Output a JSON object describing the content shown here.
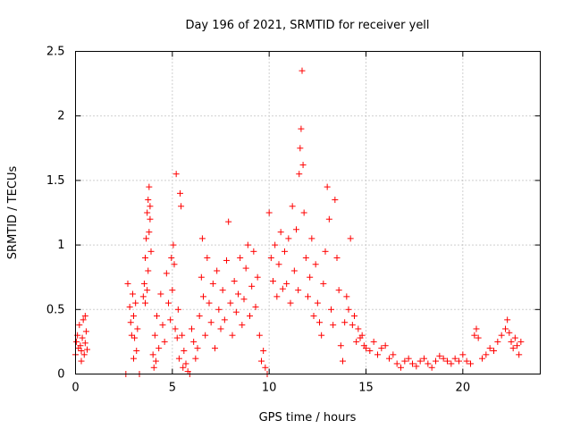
{
  "chart_data": {
    "type": "scatter",
    "title": "Day 196 of 2021, SRMTID for receiver yell",
    "xlabel": "GPS time / hours",
    "ylabel": "SRMTID / TECUs",
    "xlim": [
      0,
      24
    ],
    "ylim": [
      0,
      2.5
    ],
    "x_ticks": [
      0,
      5,
      10,
      15,
      20
    ],
    "x_tick_labels": [
      "0",
      "5",
      "10",
      "15",
      "20"
    ],
    "y_ticks": [
      0,
      0.5,
      1,
      1.5,
      2,
      2.5
    ],
    "y_tick_labels": [
      "0",
      "0.5",
      "1",
      "1.5",
      "2",
      "2.5"
    ],
    "grid": true,
    "marker": "+",
    "series": [
      {
        "name": "SRMTID",
        "color": "#ff0000",
        "points": [
          [
            0.0,
            0.15
          ],
          [
            0.05,
            0.25
          ],
          [
            0.1,
            0.3
          ],
          [
            0.15,
            0.2
          ],
          [
            0.2,
            0.38
          ],
          [
            0.25,
            0.22
          ],
          [
            0.3,
            0.18
          ],
          [
            0.35,
            0.28
          ],
          [
            0.4,
            0.42
          ],
          [
            0.45,
            0.15
          ],
          [
            0.5,
            0.24
          ],
          [
            0.55,
            0.33
          ],
          [
            0.6,
            0.19
          ],
          [
            0.5,
            0.45
          ],
          [
            0.3,
            0.1
          ],
          [
            2.6,
            0.0
          ],
          [
            2.7,
            0.7
          ],
          [
            2.8,
            0.52
          ],
          [
            2.85,
            0.4
          ],
          [
            2.9,
            0.3
          ],
          [
            2.95,
            0.62
          ],
          [
            3.0,
            0.45
          ],
          [
            3.05,
            0.28
          ],
          [
            3.1,
            0.55
          ],
          [
            3.15,
            0.18
          ],
          [
            3.2,
            0.35
          ],
          [
            3.0,
            0.12
          ],
          [
            3.3,
            0.0
          ],
          [
            3.5,
            0.6
          ],
          [
            3.55,
            0.7
          ],
          [
            3.6,
            0.9
          ],
          [
            3.65,
            1.05
          ],
          [
            3.7,
            1.25
          ],
          [
            3.75,
            1.35
          ],
          [
            3.8,
            1.45
          ],
          [
            3.85,
            1.2
          ],
          [
            3.9,
            0.95
          ],
          [
            3.6,
            0.55
          ],
          [
            3.7,
            0.65
          ],
          [
            3.75,
            0.8
          ],
          [
            3.8,
            1.1
          ],
          [
            3.85,
            1.3
          ],
          [
            4.0,
            0.15
          ],
          [
            4.05,
            0.05
          ],
          [
            4.1,
            0.3
          ],
          [
            4.15,
            0.1
          ],
          [
            4.2,
            0.45
          ],
          [
            4.3,
            0.2
          ],
          [
            4.4,
            0.62
          ],
          [
            4.5,
            0.38
          ],
          [
            4.6,
            0.25
          ],
          [
            4.7,
            0.78
          ],
          [
            4.8,
            0.55
          ],
          [
            4.9,
            0.42
          ],
          [
            4.95,
            0.9
          ],
          [
            5.0,
            0.65
          ],
          [
            5.05,
            1.0
          ],
          [
            5.1,
            0.85
          ],
          [
            5.15,
            0.35
          ],
          [
            5.2,
            1.55
          ],
          [
            5.25,
            0.28
          ],
          [
            5.3,
            0.5
          ],
          [
            5.35,
            0.12
          ],
          [
            5.4,
            1.4
          ],
          [
            5.45,
            1.3
          ],
          [
            5.5,
            0.3
          ],
          [
            5.55,
            0.05
          ],
          [
            5.6,
            0.18
          ],
          [
            5.7,
            0.08
          ],
          [
            5.8,
            0.02
          ],
          [
            5.9,
            0.0
          ],
          [
            6.0,
            0.35
          ],
          [
            6.1,
            0.25
          ],
          [
            6.2,
            0.12
          ],
          [
            6.3,
            0.2
          ],
          [
            6.4,
            0.45
          ],
          [
            6.5,
            0.75
          ],
          [
            6.55,
            1.05
          ],
          [
            6.6,
            0.6
          ],
          [
            6.7,
            0.3
          ],
          [
            6.8,
            0.9
          ],
          [
            6.9,
            0.55
          ],
          [
            7.0,
            0.4
          ],
          [
            7.1,
            0.7
          ],
          [
            7.2,
            0.2
          ],
          [
            7.3,
            0.8
          ],
          [
            7.4,
            0.5
          ],
          [
            7.5,
            0.35
          ],
          [
            7.6,
            0.65
          ],
          [
            7.7,
            0.42
          ],
          [
            7.8,
            0.88
          ],
          [
            7.9,
            1.18
          ],
          [
            8.0,
            0.55
          ],
          [
            8.1,
            0.3
          ],
          [
            8.2,
            0.72
          ],
          [
            8.3,
            0.48
          ],
          [
            8.4,
            0.62
          ],
          [
            8.5,
            0.9
          ],
          [
            8.6,
            0.38
          ],
          [
            8.7,
            0.58
          ],
          [
            8.8,
            0.82
          ],
          [
            8.9,
            1.0
          ],
          [
            9.0,
            0.45
          ],
          [
            9.1,
            0.68
          ],
          [
            9.2,
            0.95
          ],
          [
            9.3,
            0.52
          ],
          [
            9.4,
            0.75
          ],
          [
            9.5,
            0.3
          ],
          [
            9.6,
            0.1
          ],
          [
            9.7,
            0.18
          ],
          [
            9.8,
            0.05
          ],
          [
            9.9,
            0.0
          ],
          [
            10.0,
            1.25
          ],
          [
            10.1,
            0.9
          ],
          [
            10.2,
            0.72
          ],
          [
            10.3,
            1.0
          ],
          [
            10.4,
            0.6
          ],
          [
            10.5,
            0.85
          ],
          [
            10.6,
            1.1
          ],
          [
            10.7,
            0.66
          ],
          [
            10.8,
            0.95
          ],
          [
            10.9,
            0.7
          ],
          [
            11.0,
            1.05
          ],
          [
            11.1,
            0.55
          ],
          [
            11.2,
            1.3
          ],
          [
            11.3,
            0.8
          ],
          [
            11.4,
            1.12
          ],
          [
            11.5,
            0.65
          ],
          [
            11.55,
            1.55
          ],
          [
            11.6,
            1.75
          ],
          [
            11.65,
            1.9
          ],
          [
            11.7,
            2.35
          ],
          [
            11.75,
            1.62
          ],
          [
            11.8,
            1.25
          ],
          [
            11.9,
            0.9
          ],
          [
            12.0,
            0.6
          ],
          [
            12.1,
            0.75
          ],
          [
            12.2,
            1.05
          ],
          [
            12.3,
            0.45
          ],
          [
            12.4,
            0.85
          ],
          [
            12.5,
            0.55
          ],
          [
            12.6,
            0.4
          ],
          [
            12.7,
            0.3
          ],
          [
            12.8,
            0.7
          ],
          [
            12.9,
            0.95
          ],
          [
            13.0,
            1.45
          ],
          [
            13.1,
            1.2
          ],
          [
            13.2,
            0.5
          ],
          [
            13.3,
            0.38
          ],
          [
            13.4,
            1.35
          ],
          [
            13.5,
            0.9
          ],
          [
            13.6,
            0.65
          ],
          [
            13.7,
            0.22
          ],
          [
            13.8,
            0.1
          ],
          [
            13.9,
            0.4
          ],
          [
            14.0,
            0.6
          ],
          [
            14.1,
            0.5
          ],
          [
            14.2,
            1.05
          ],
          [
            14.3,
            0.38
          ],
          [
            14.4,
            0.45
          ],
          [
            14.5,
            0.25
          ],
          [
            14.6,
            0.35
          ],
          [
            14.7,
            0.28
          ],
          [
            14.8,
            0.3
          ],
          [
            14.9,
            0.22
          ],
          [
            15.0,
            0.2
          ],
          [
            15.2,
            0.18
          ],
          [
            15.4,
            0.25
          ],
          [
            15.6,
            0.15
          ],
          [
            15.8,
            0.2
          ],
          [
            16.0,
            0.22
          ],
          [
            16.2,
            0.12
          ],
          [
            16.4,
            0.15
          ],
          [
            16.6,
            0.08
          ],
          [
            16.8,
            0.05
          ],
          [
            17.0,
            0.1
          ],
          [
            17.2,
            0.12
          ],
          [
            17.4,
            0.08
          ],
          [
            17.6,
            0.06
          ],
          [
            17.8,
            0.1
          ],
          [
            18.0,
            0.12
          ],
          [
            18.2,
            0.08
          ],
          [
            18.4,
            0.05
          ],
          [
            18.6,
            0.1
          ],
          [
            18.8,
            0.14
          ],
          [
            19.0,
            0.12
          ],
          [
            19.2,
            0.1
          ],
          [
            19.4,
            0.08
          ],
          [
            19.6,
            0.12
          ],
          [
            19.8,
            0.1
          ],
          [
            20.0,
            0.15
          ],
          [
            20.2,
            0.1
          ],
          [
            20.4,
            0.08
          ],
          [
            20.6,
            0.3
          ],
          [
            20.7,
            0.35
          ],
          [
            20.8,
            0.28
          ],
          [
            21.0,
            0.12
          ],
          [
            21.2,
            0.15
          ],
          [
            21.4,
            0.2
          ],
          [
            21.6,
            0.18
          ],
          [
            21.8,
            0.25
          ],
          [
            22.0,
            0.3
          ],
          [
            22.2,
            0.35
          ],
          [
            22.3,
            0.42
          ],
          [
            22.4,
            0.32
          ],
          [
            22.5,
            0.25
          ],
          [
            22.6,
            0.2
          ],
          [
            22.7,
            0.28
          ],
          [
            22.8,
            0.22
          ],
          [
            22.9,
            0.15
          ],
          [
            23.0,
            0.25
          ]
        ]
      }
    ]
  }
}
